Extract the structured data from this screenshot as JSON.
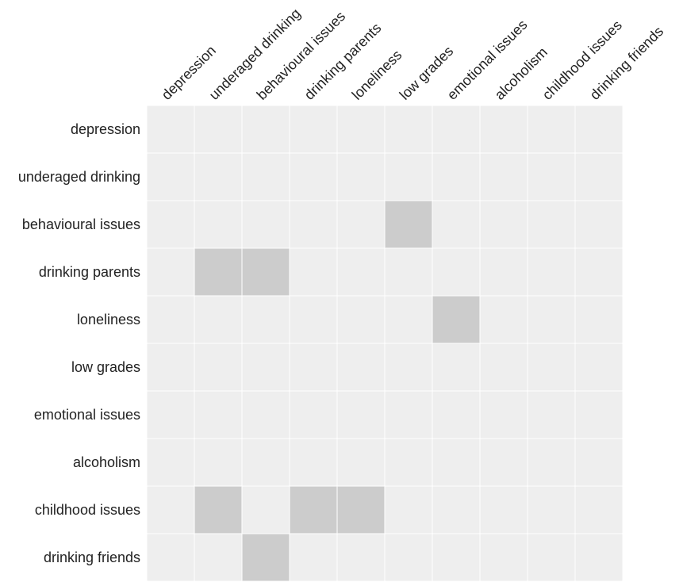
{
  "chart_data": {
    "type": "heatmap",
    "rows": [
      "depression",
      "underaged drinking",
      "behavioural issues",
      "drinking parents",
      "loneliness",
      "low grades",
      "emotional issues",
      "alcoholism",
      "childhood issues",
      "drinking friends"
    ],
    "columns": [
      "depression",
      "underaged drinking",
      "behavioural issues",
      "drinking parents",
      "loneliness",
      "low grades",
      "emotional issues",
      "alcoholism",
      "childhood issues",
      "drinking friends"
    ],
    "matrix": [
      [
        0,
        0,
        0,
        0,
        0,
        0,
        0,
        0,
        0,
        0
      ],
      [
        0,
        0,
        0,
        0,
        0,
        0,
        0,
        0,
        0,
        0
      ],
      [
        0,
        0,
        0,
        0,
        0,
        1,
        0,
        0,
        0,
        0
      ],
      [
        0,
        1,
        1,
        0,
        0,
        0,
        0,
        0,
        0,
        0
      ],
      [
        0,
        0,
        0,
        0,
        0,
        0,
        1,
        0,
        0,
        0
      ],
      [
        0,
        0,
        0,
        0,
        0,
        0,
        0,
        0,
        0,
        0
      ],
      [
        0,
        0,
        0,
        0,
        0,
        0,
        0,
        0,
        0,
        0
      ],
      [
        0,
        0,
        0,
        0,
        0,
        0,
        0,
        0,
        0,
        0
      ],
      [
        0,
        1,
        0,
        1,
        1,
        0,
        0,
        0,
        0,
        0
      ],
      [
        0,
        0,
        1,
        0,
        0,
        0,
        0,
        0,
        0,
        0
      ]
    ],
    "colors": {
      "empty": "#eeeeee",
      "filled": "#cccccc",
      "grid": "#ffffff"
    },
    "grid": true,
    "title": "",
    "xlabel": "",
    "ylabel": ""
  }
}
